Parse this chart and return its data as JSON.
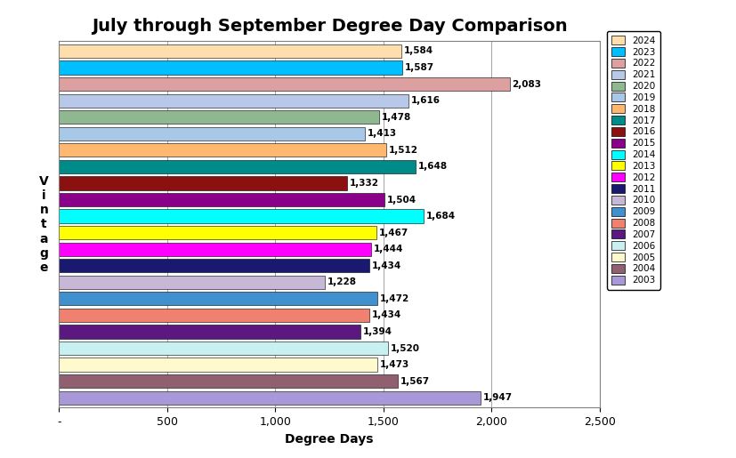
{
  "title": "July through September Degree Day Comparison",
  "xlabel": "Degree Days",
  "ylabel": "V\ni\nn\nt\na\ng\ne",
  "years": [
    2024,
    2023,
    2022,
    2021,
    2020,
    2019,
    2018,
    2017,
    2016,
    2015,
    2014,
    2013,
    2012,
    2011,
    2010,
    2009,
    2008,
    2007,
    2006,
    2005,
    2004,
    2003
  ],
  "values": [
    1584,
    1587,
    2083,
    1616,
    1478,
    1413,
    1512,
    1648,
    1332,
    1504,
    1684,
    1467,
    1444,
    1434,
    1228,
    1472,
    1434,
    1394,
    1520,
    1473,
    1567,
    1947
  ],
  "colors": [
    "#FFDEAD",
    "#00BFFF",
    "#DDA0A0",
    "#B8C8E8",
    "#90B890",
    "#A8C8E8",
    "#FFB870",
    "#008B8B",
    "#8B1010",
    "#8B008B",
    "#00FFFF",
    "#FFFF00",
    "#FF00FF",
    "#191970",
    "#C8B8D8",
    "#4090D0",
    "#F08070",
    "#5B1880",
    "#C8F0F0",
    "#FFFACD",
    "#906070",
    "#A898D8"
  ],
  "xlim": [
    0,
    2500
  ],
  "xticks": [
    0,
    500,
    1000,
    1500,
    2000,
    2500
  ],
  "xtick_labels": [
    "-",
    "500",
    "1,000",
    "1,500",
    "2,000",
    "2,500"
  ],
  "background_color": "#FFFFFF",
  "title_fontsize": 14,
  "axis_label_fontsize": 10,
  "bar_label_fontsize": 7.5,
  "tick_fontsize": 9
}
